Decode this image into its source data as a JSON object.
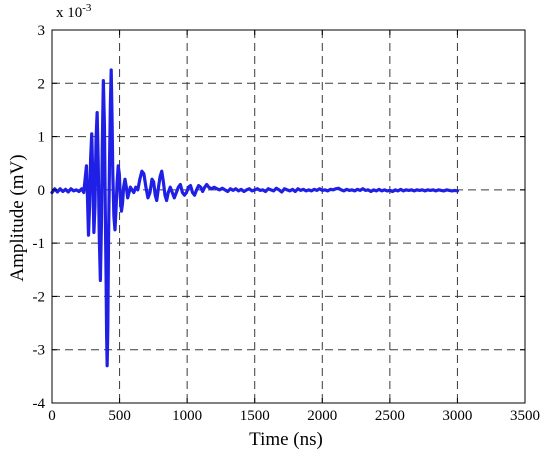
{
  "chart_data": {
    "type": "line",
    "xlabel": "Time (ns)",
    "ylabel": "Amplitude (mV)",
    "y_multiplier_label": "x 10",
    "y_multiplier_exponent": "-3",
    "xlim": [
      0,
      3500
    ],
    "ylim": [
      -4,
      3
    ],
    "x_ticks": [
      0,
      500,
      1000,
      1500,
      2000,
      2500,
      3000,
      3500
    ],
    "y_ticks": [
      3,
      2,
      1,
      0,
      -1,
      -2,
      -3,
      -4
    ],
    "grid": true,
    "colors": {
      "series": "#1f1fe6",
      "grid": "#3a3a3a",
      "frame": "#000000"
    },
    "series": [
      {
        "points": [
          [
            0,
            -0.05
          ],
          [
            20,
            0.02
          ],
          [
            40,
            -0.04
          ],
          [
            60,
            0.02
          ],
          [
            80,
            -0.03
          ],
          [
            100,
            0.01
          ],
          [
            120,
            -0.04
          ],
          [
            140,
            0.02
          ],
          [
            160,
            -0.02
          ],
          [
            180,
            0.0
          ],
          [
            200,
            -0.03
          ],
          [
            220,
            0.02
          ],
          [
            235,
            -0.05
          ],
          [
            245,
            0.2
          ],
          [
            255,
            0.45
          ],
          [
            262,
            -0.1
          ],
          [
            270,
            -0.85
          ],
          [
            278,
            -0.3
          ],
          [
            286,
            0.6
          ],
          [
            294,
            1.05
          ],
          [
            302,
            0.2
          ],
          [
            310,
            -0.8
          ],
          [
            318,
            -0.3
          ],
          [
            326,
            0.95
          ],
          [
            334,
            1.45
          ],
          [
            342,
            0.5
          ],
          [
            350,
            -0.9
          ],
          [
            358,
            -1.7
          ],
          [
            366,
            -0.6
          ],
          [
            372,
            0.8
          ],
          [
            380,
            2.05
          ],
          [
            388,
            1.2
          ],
          [
            394,
            -0.3
          ],
          [
            400,
            -1.6
          ],
          [
            404,
            -2.7
          ],
          [
            408,
            -3.3
          ],
          [
            413,
            -2.6
          ],
          [
            418,
            -1.0
          ],
          [
            425,
            0.4
          ],
          [
            432,
            1.6
          ],
          [
            438,
            2.25
          ],
          [
            444,
            1.4
          ],
          [
            450,
            0.3
          ],
          [
            458,
            -0.5
          ],
          [
            466,
            -0.75
          ],
          [
            474,
            -0.35
          ],
          [
            482,
            0.15
          ],
          [
            490,
            0.45
          ],
          [
            498,
            0.3
          ],
          [
            506,
            -0.15
          ],
          [
            514,
            -0.4
          ],
          [
            522,
            -0.25
          ],
          [
            530,
            0.05
          ],
          [
            540,
            0.2
          ],
          [
            550,
            0.05
          ],
          [
            560,
            -0.15
          ],
          [
            570,
            -0.05
          ],
          [
            580,
            0.05
          ],
          [
            592,
            0.0
          ],
          [
            605,
            -0.05
          ],
          [
            620,
            0.05
          ],
          [
            635,
            0.0
          ],
          [
            650,
            0.2
          ],
          [
            665,
            0.35
          ],
          [
            680,
            0.3
          ],
          [
            695,
            0.05
          ],
          [
            710,
            -0.15
          ],
          [
            725,
            -0.05
          ],
          [
            740,
            0.2
          ],
          [
            752,
            0.15
          ],
          [
            764,
            -0.1
          ],
          [
            775,
            -0.2
          ],
          [
            788,
            0.05
          ],
          [
            800,
            0.25
          ],
          [
            812,
            0.35
          ],
          [
            824,
            0.15
          ],
          [
            836,
            -0.1
          ],
          [
            848,
            -0.2
          ],
          [
            860,
            -0.05
          ],
          [
            875,
            0.05
          ],
          [
            890,
            -0.05
          ],
          [
            905,
            -0.15
          ],
          [
            920,
            -0.05
          ],
          [
            935,
            0.05
          ],
          [
            950,
            0.1
          ],
          [
            965,
            -0.05
          ],
          [
            980,
            -0.1
          ],
          [
            995,
            -0.05
          ],
          [
            1010,
            0.05
          ],
          [
            1025,
            0.08
          ],
          [
            1040,
            -0.05
          ],
          [
            1055,
            -0.1
          ],
          [
            1070,
            0.0
          ],
          [
            1085,
            0.08
          ],
          [
            1100,
            0.05
          ],
          [
            1115,
            -0.03
          ],
          [
            1130,
            0.05
          ],
          [
            1145,
            0.1
          ],
          [
            1160,
            0.05
          ],
          [
            1180,
            0.02
          ],
          [
            1200,
            0.05
          ],
          [
            1220,
            0.02
          ],
          [
            1240,
            0.0
          ],
          [
            1260,
            0.03
          ],
          [
            1280,
            0.0
          ],
          [
            1300,
            -0.03
          ],
          [
            1320,
            0.02
          ],
          [
            1340,
            -0.01
          ],
          [
            1360,
            0.02
          ],
          [
            1380,
            -0.02
          ],
          [
            1400,
            0.01
          ],
          [
            1420,
            -0.03
          ],
          [
            1440,
            0.0
          ],
          [
            1460,
            0.02
          ],
          [
            1480,
            -0.02
          ],
          [
            1500,
            0.0
          ],
          [
            1520,
            0.02
          ],
          [
            1540,
            -0.01
          ],
          [
            1560,
            0.0
          ],
          [
            1580,
            -0.03
          ],
          [
            1600,
            0.02
          ],
          [
            1620,
            0.0
          ],
          [
            1640,
            -0.02
          ],
          [
            1660,
            0.03
          ],
          [
            1680,
            0.0
          ],
          [
            1700,
            -0.04
          ],
          [
            1720,
            0.02
          ],
          [
            1740,
            0.0
          ],
          [
            1760,
            -0.02
          ],
          [
            1780,
            0.01
          ],
          [
            1800,
            -0.03
          ],
          [
            1820,
            0.02
          ],
          [
            1840,
            -0.01
          ],
          [
            1860,
            0.01
          ],
          [
            1880,
            -0.02
          ],
          [
            1900,
            0.0
          ],
          [
            1920,
            -0.02
          ],
          [
            1940,
            0.01
          ],
          [
            1960,
            -0.01
          ],
          [
            1980,
            0.02
          ],
          [
            2000,
            -0.01
          ],
          [
            2020,
            0.0
          ],
          [
            2040,
            -0.02
          ],
          [
            2060,
            0.01
          ],
          [
            2080,
            0.0
          ],
          [
            2100,
            0.02
          ],
          [
            2120,
            0.03
          ],
          [
            2140,
            0.0
          ],
          [
            2160,
            -0.02
          ],
          [
            2180,
            0.01
          ],
          [
            2200,
            -0.01
          ],
          [
            2220,
            0.0
          ],
          [
            2240,
            -0.02
          ],
          [
            2260,
            0.01
          ],
          [
            2280,
            -0.01
          ],
          [
            2300,
            0.02
          ],
          [
            2320,
            -0.01
          ],
          [
            2340,
            0.0
          ],
          [
            2360,
            -0.03
          ],
          [
            2380,
            0.0
          ],
          [
            2400,
            -0.02
          ],
          [
            2420,
            0.01
          ],
          [
            2440,
            -0.02
          ],
          [
            2460,
            0.0
          ],
          [
            2480,
            -0.02
          ],
          [
            2500,
            -0.01
          ],
          [
            2520,
            -0.03
          ],
          [
            2540,
            0.0
          ],
          [
            2560,
            -0.02
          ],
          [
            2580,
            0.01
          ],
          [
            2600,
            -0.02
          ],
          [
            2620,
            0.0
          ],
          [
            2640,
            -0.01
          ],
          [
            2660,
            0.0
          ],
          [
            2680,
            -0.02
          ],
          [
            2700,
            0.0
          ],
          [
            2720,
            -0.01
          ],
          [
            2740,
            0.0
          ],
          [
            2760,
            -0.02
          ],
          [
            2780,
            0.0
          ],
          [
            2800,
            -0.01
          ],
          [
            2820,
            0.0
          ],
          [
            2840,
            -0.02
          ],
          [
            2860,
            0.0
          ],
          [
            2880,
            -0.01
          ],
          [
            2900,
            -0.02
          ],
          [
            2920,
            0.0
          ],
          [
            2940,
            -0.01
          ],
          [
            2960,
            -0.02
          ],
          [
            2980,
            -0.01
          ],
          [
            3000,
            -0.02
          ]
        ]
      }
    ]
  }
}
